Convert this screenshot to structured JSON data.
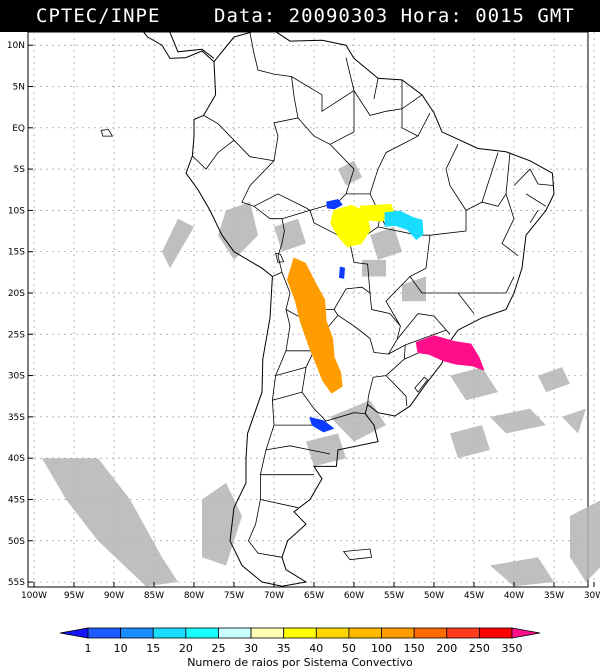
{
  "header": {
    "left": "CPTEC/INPE",
    "right": "Data: 20090303 Hora: 0015 GMT"
  },
  "map": {
    "lat_labels": [
      "10N",
      "5N",
      "EQ",
      "5S",
      "10S",
      "15S",
      "20S",
      "25S",
      "30S",
      "35S",
      "40S",
      "45S",
      "50S",
      "55S"
    ],
    "lon_labels": [
      "100W",
      "95W",
      "90W",
      "85W",
      "80W",
      "75W",
      "70W",
      "65W",
      "60W",
      "55W",
      "50W",
      "45W",
      "40W",
      "35W",
      "30W"
    ],
    "lat_range": [
      10,
      -55
    ],
    "lon_range": [
      -100,
      -30
    ],
    "colors": {
      "land_border": "#000000",
      "cloud": "#b4b4b4",
      "grid": "#9a9a9a"
    },
    "clusters": [
      {
        "name": "blue-brazil-north",
        "color": "#0a3bff",
        "value_class": "1",
        "lon": -62.3,
        "lat": -9.3
      },
      {
        "name": "yellow-rondonia",
        "color": "#ffff00",
        "value_class": "35-40",
        "lon": -60.3,
        "lat": -11.6
      },
      {
        "name": "yellow-mato-grosso",
        "color": "#ffff00",
        "value_class": "35-40",
        "lon": -57.2,
        "lat": -10.1
      },
      {
        "name": "cyan-mato-grosso",
        "color": "#19ddff",
        "value_class": "20-25",
        "lon": -53.8,
        "lat": -11.5
      },
      {
        "name": "blue-small-central",
        "color": "#0a3bff",
        "value_class": "1",
        "lon": -61.5,
        "lat": -17.5
      },
      {
        "name": "orange-andes",
        "color": "#ff9d00",
        "value_class": "100-150",
        "lon": -65.5,
        "lat": -24.0
      },
      {
        "name": "magenta-south-brazil",
        "color": "#ff0d8a",
        "value_class": "350",
        "lon": -48.0,
        "lat": -26.8
      },
      {
        "name": "blue-argentina",
        "color": "#0a3bff",
        "value_class": "1",
        "lon": -64.0,
        "lat": -35.8
      }
    ]
  },
  "colorbar": {
    "labels": [
      "1",
      "10",
      "15",
      "20",
      "25",
      "30",
      "35",
      "40",
      "50",
      "100",
      "150",
      "200",
      "250",
      "350"
    ],
    "colors": [
      "#1414ff",
      "#1e5bff",
      "#1a8cff",
      "#19ddff",
      "#19ffff",
      "#c8ffff",
      "#ffffb4",
      "#ffff00",
      "#ffd700",
      "#ffba00",
      "#ff9d00",
      "#ff6a00",
      "#ff3d1e",
      "#ff0000",
      "#ff0d8a"
    ],
    "title": "Numero de raios por Sistema Convectivo"
  }
}
